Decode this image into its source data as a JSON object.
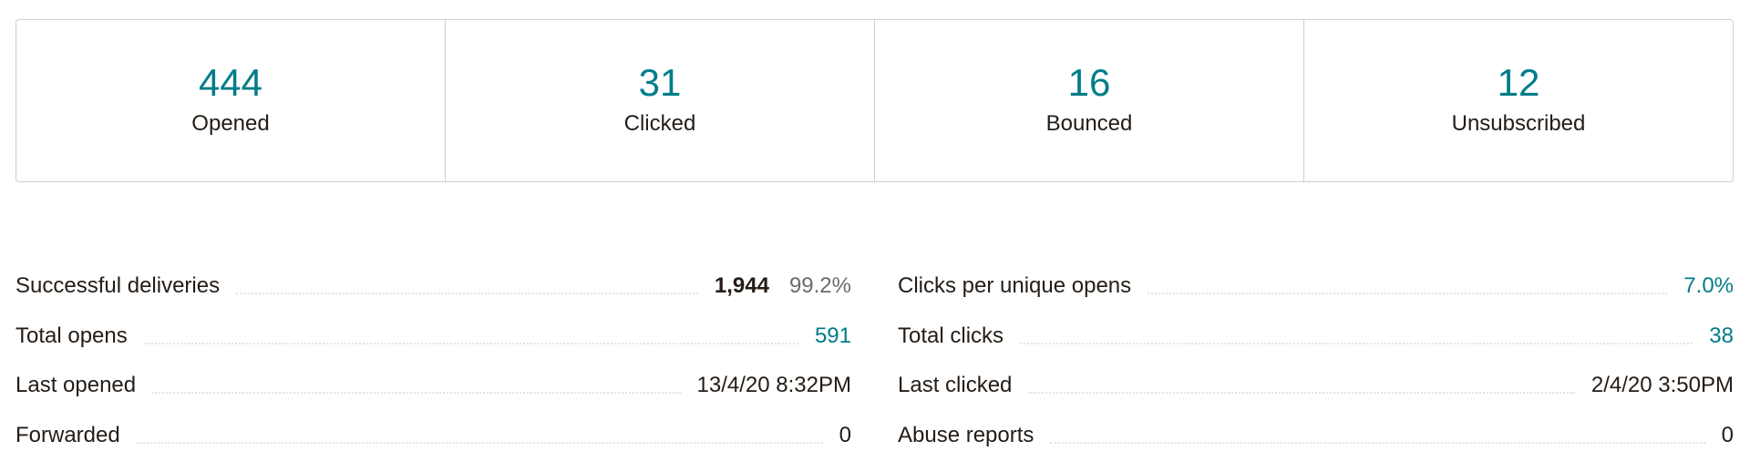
{
  "summary": [
    {
      "value": "444",
      "label": "Opened"
    },
    {
      "value": "31",
      "label": "Clicked"
    },
    {
      "value": "16",
      "label": "Bounced"
    },
    {
      "value": "12",
      "label": "Unsubscribed"
    }
  ],
  "left_metrics": {
    "successful_deliveries": {
      "label": "Successful deliveries",
      "value": "1,944",
      "percent": "99.2%"
    },
    "total_opens": {
      "label": "Total opens",
      "value": "591"
    },
    "last_opened": {
      "label": "Last opened",
      "value": "13/4/20 8:32PM"
    },
    "forwarded": {
      "label": "Forwarded",
      "value": "0"
    }
  },
  "right_metrics": {
    "clicks_per_unique_opens": {
      "label": "Clicks per unique opens",
      "value": "7.0%"
    },
    "total_clicks": {
      "label": "Total clicks",
      "value": "38"
    },
    "last_clicked": {
      "label": "Last clicked",
      "value": "2/4/20 3:50PM"
    },
    "abuse_reports": {
      "label": "Abuse reports",
      "value": "0"
    }
  },
  "colors": {
    "accent": "#007c89",
    "text": "#241c15",
    "muted": "#6b6b6b",
    "border": "#cfcfcf"
  }
}
